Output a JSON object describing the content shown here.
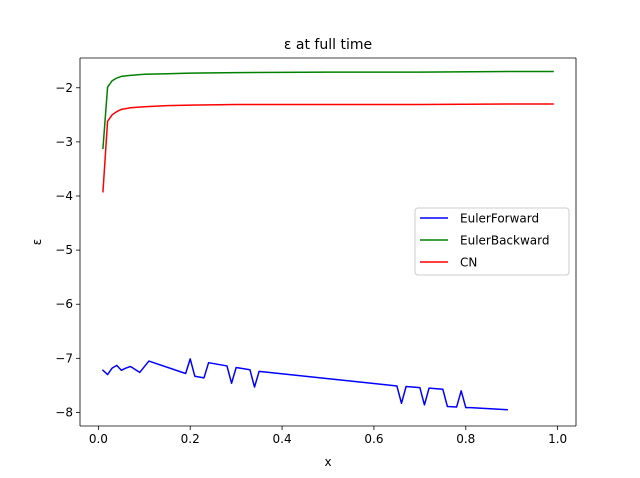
{
  "chart_data": {
    "type": "line",
    "title": "ε at full time",
    "xlabel": "x",
    "ylabel": "ε",
    "xlim": [
      -0.04,
      1.04
    ],
    "ylim": [
      -8.25,
      -1.45
    ],
    "xticks": [
      0.0,
      0.2,
      0.4,
      0.6,
      0.8,
      1.0
    ],
    "xtick_labels": [
      "0.0",
      "0.2",
      "0.4",
      "0.6",
      "0.8",
      "1.0"
    ],
    "yticks": [
      -8,
      -7,
      -6,
      -5,
      -4,
      -3,
      -2
    ],
    "ytick_labels": [
      "−8",
      "−7",
      "−6",
      "−5",
      "−4",
      "−3",
      "−2"
    ],
    "grid": false,
    "legend_position": "center-right",
    "series": [
      {
        "name": "EulerForward",
        "color": "#0000ff",
        "x": [
          0.01,
          0.02,
          0.03,
          0.04,
          0.05,
          0.06,
          0.07,
          0.09,
          0.11,
          0.19,
          0.2,
          0.21,
          0.23,
          0.24,
          0.28,
          0.29,
          0.3,
          0.33,
          0.34,
          0.35,
          0.65,
          0.66,
          0.67,
          0.7,
          0.71,
          0.72,
          0.75,
          0.76,
          0.78,
          0.79,
          0.8,
          0.81,
          0.89
        ],
        "y": [
          -7.22,
          -7.3,
          -7.18,
          -7.13,
          -7.22,
          -7.18,
          -7.15,
          -7.26,
          -7.05,
          -7.28,
          -7.01,
          -7.33,
          -7.36,
          -7.08,
          -7.14,
          -7.46,
          -7.17,
          -7.21,
          -7.53,
          -7.24,
          -7.51,
          -7.83,
          -7.52,
          -7.54,
          -7.86,
          -7.55,
          -7.57,
          -7.89,
          -7.9,
          -7.6,
          -7.91,
          -7.91,
          -7.95
        ]
      },
      {
        "name": "EulerBackward",
        "color": "#008000",
        "x": [
          0.01,
          0.02,
          0.03,
          0.04,
          0.05,
          0.07,
          0.1,
          0.15,
          0.2,
          0.3,
          0.5,
          0.7,
          0.9,
          0.99
        ],
        "y": [
          -3.12,
          -1.99,
          -1.87,
          -1.82,
          -1.79,
          -1.77,
          -1.75,
          -1.74,
          -1.73,
          -1.72,
          -1.71,
          -1.71,
          -1.7,
          -1.7
        ]
      },
      {
        "name": "CN",
        "color": "#ff0000",
        "x": [
          0.01,
          0.02,
          0.03,
          0.04,
          0.05,
          0.07,
          0.1,
          0.15,
          0.2,
          0.3,
          0.5,
          0.7,
          0.9,
          0.99
        ],
        "y": [
          -3.92,
          -2.62,
          -2.5,
          -2.44,
          -2.4,
          -2.37,
          -2.35,
          -2.33,
          -2.32,
          -2.31,
          -2.31,
          -2.31,
          -2.3,
          -2.3
        ]
      }
    ]
  }
}
